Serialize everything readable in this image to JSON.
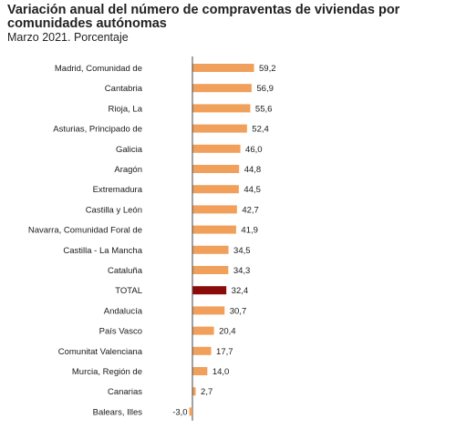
{
  "chart_data": {
    "type": "bar",
    "orientation": "horizontal",
    "title": "Variación anual del número de compraventas de viviendas por comunidades autónomas",
    "subtitle": "Marzo 2021. Porcentaje",
    "categories": [
      "Madrid, Comunidad de",
      "Cantabria",
      "Rioja, La",
      "Asturias, Principado de",
      "Galicia",
      "Aragón",
      "Extremadura",
      "Castilla y León",
      "Navarra, Comunidad Foral de",
      "Castilla - La Mancha",
      "Cataluña",
      "TOTAL",
      "Andalucía",
      "País Vasco",
      "Comunitat Valenciana",
      "Murcia, Región de",
      "Canarias",
      "Balears, Illes"
    ],
    "values": [
      59.2,
      56.9,
      55.6,
      52.4,
      46.0,
      44.8,
      44.5,
      42.7,
      41.9,
      34.5,
      34.3,
      32.4,
      30.7,
      20.4,
      17.7,
      14.0,
      2.7,
      -3.0
    ],
    "value_labels": [
      "59,2",
      "56,9",
      "55,6",
      "52,4",
      "46,0",
      "44,8",
      "44,5",
      "42,7",
      "41,9",
      "34,5",
      "34,3",
      "32,4",
      "30,7",
      "20,4",
      "17,7",
      "14,0",
      "2,7",
      "-3,0"
    ],
    "highlight_category": "TOTAL",
    "colors": {
      "bar": "#f0a05a",
      "highlight": "#8b0b0b",
      "axis": "#444444"
    },
    "grid": false,
    "legend": "none"
  }
}
